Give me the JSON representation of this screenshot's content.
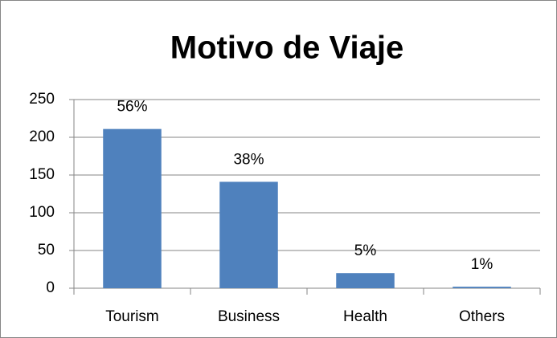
{
  "chart_data": {
    "type": "bar",
    "title": "Motivo de Viaje",
    "categories": [
      "Tourism",
      "Business",
      "Health",
      "Others"
    ],
    "values": [
      211,
      141,
      20,
      2
    ],
    "value_labels": [
      "56%",
      "38%",
      "5%",
      "1%"
    ],
    "color": "#4f81bd",
    "ylim": [
      0,
      250
    ],
    "yticks": [
      0,
      50,
      100,
      150,
      200,
      250
    ],
    "grid": true
  }
}
